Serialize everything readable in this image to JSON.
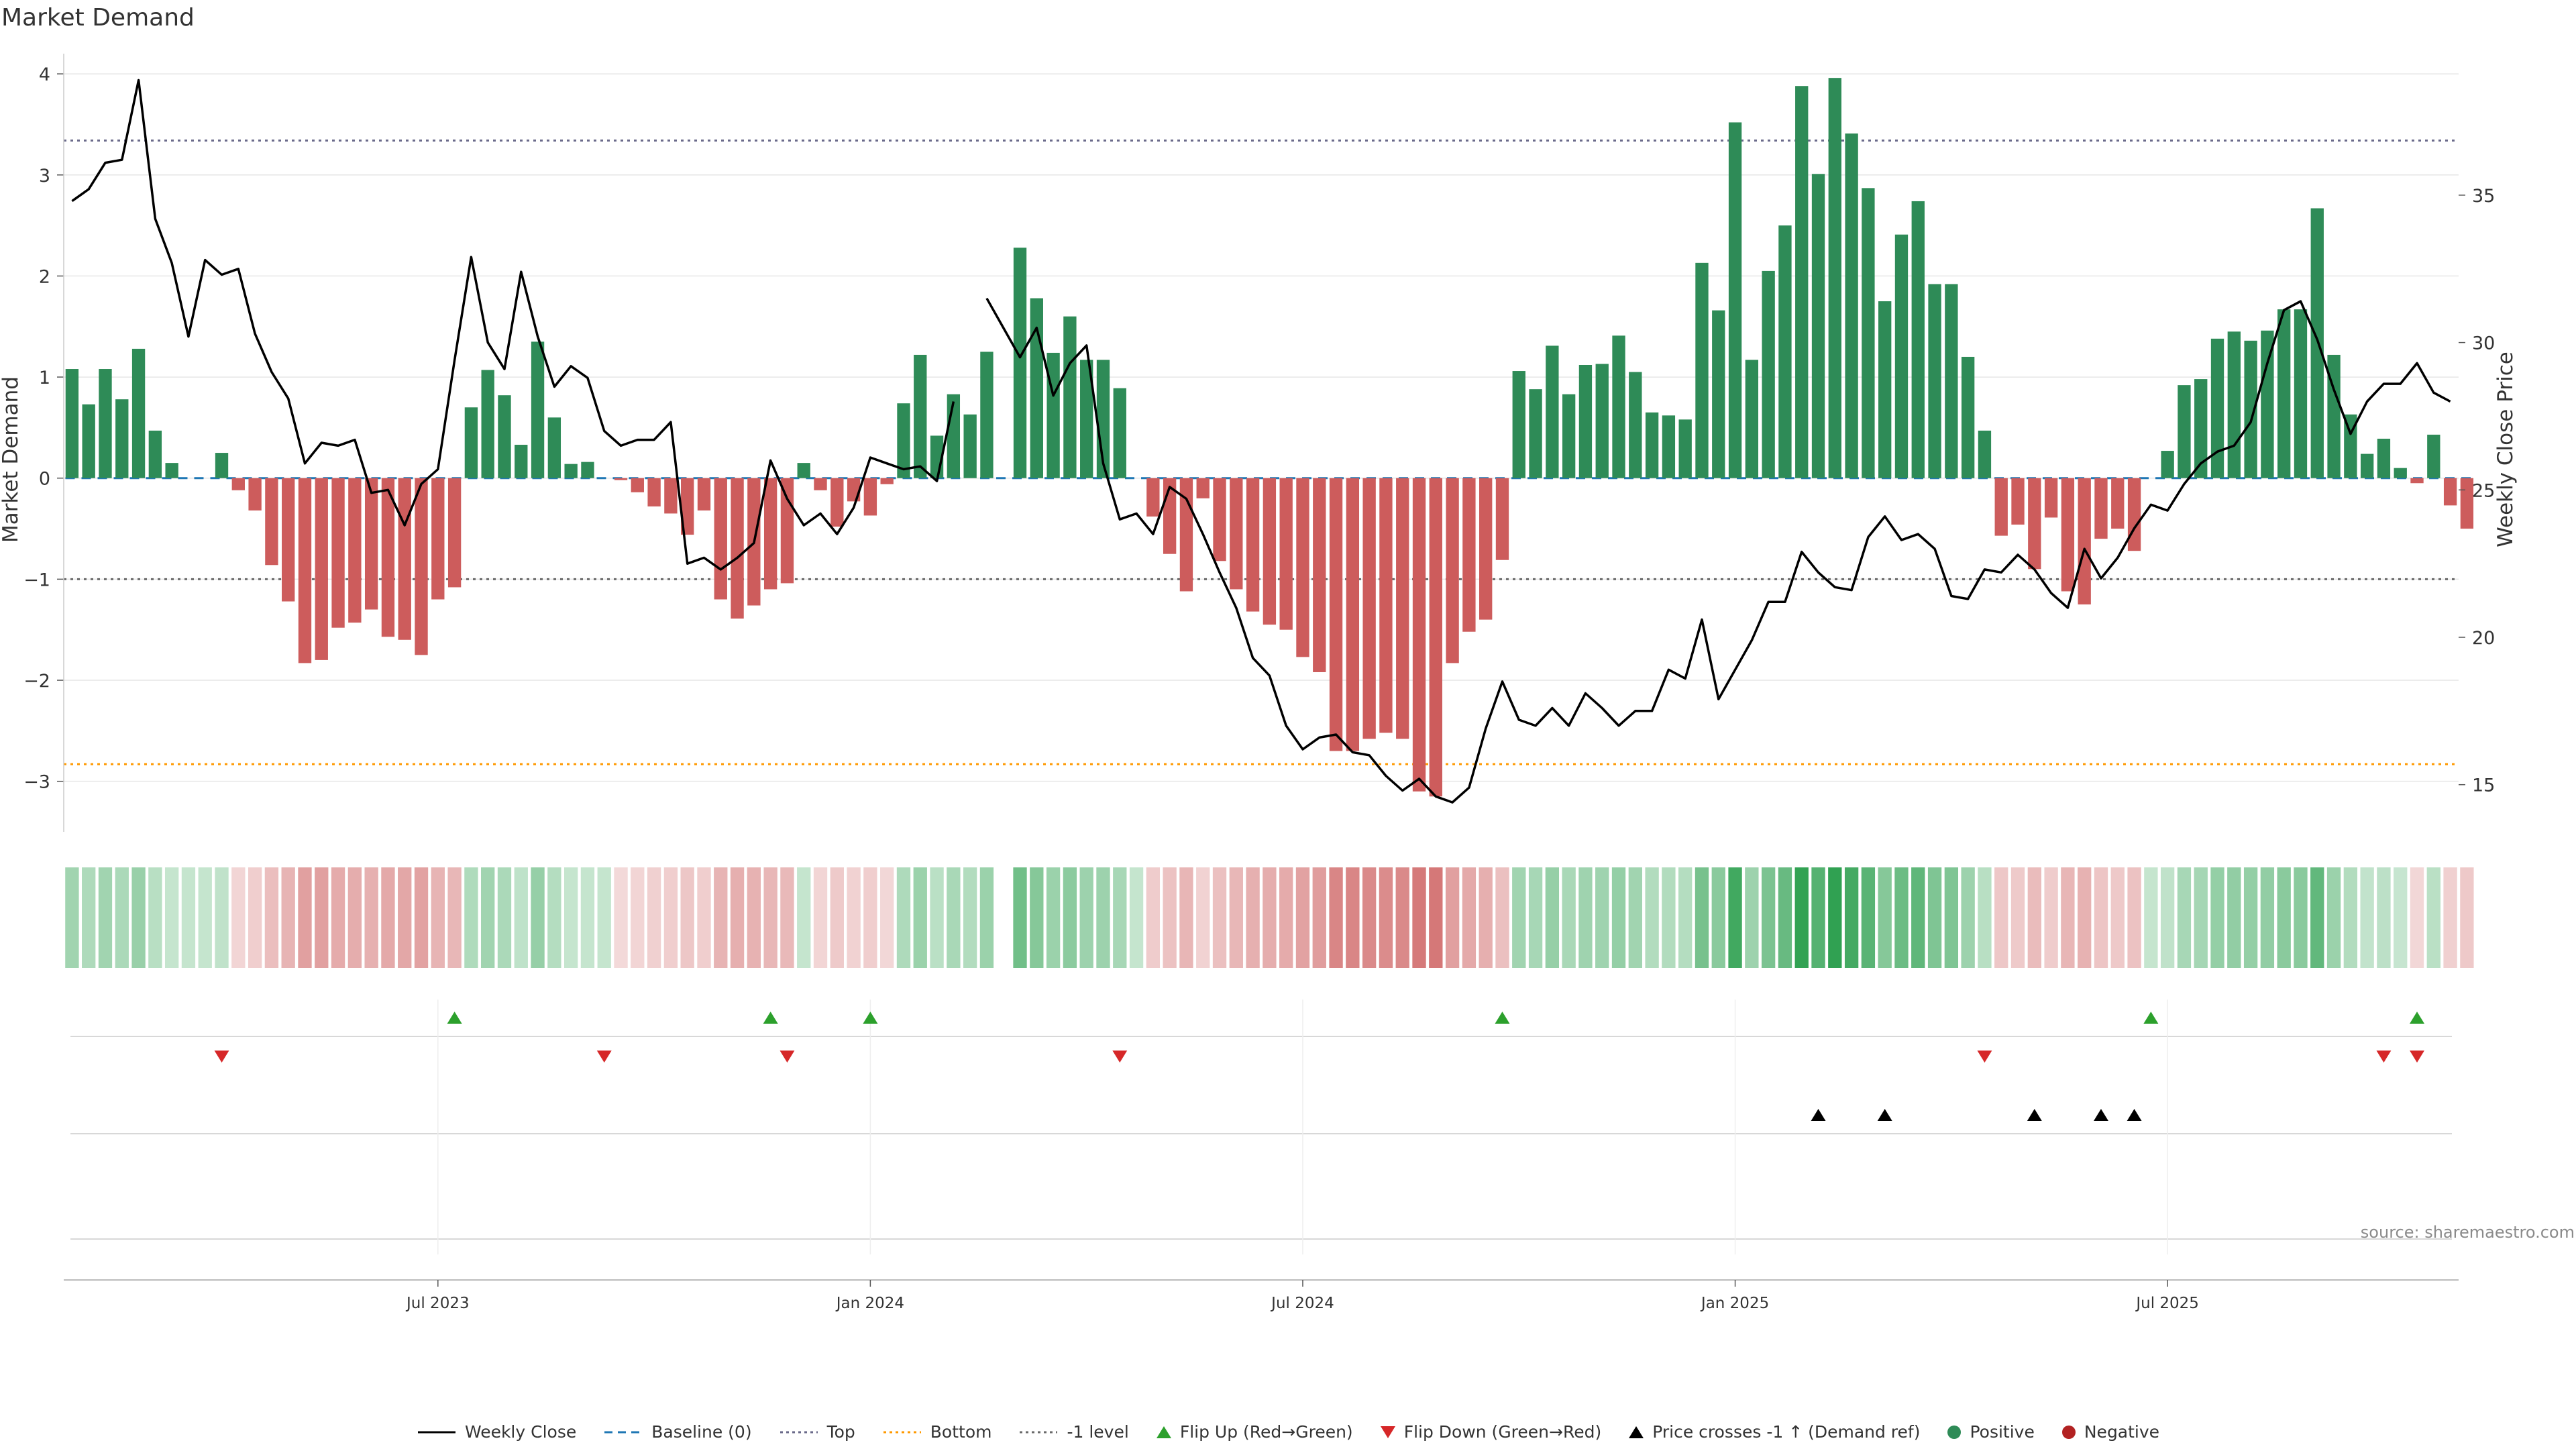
{
  "title": "Market Demand",
  "source_note": "source: sharemaestro.com",
  "colors": {
    "positive": "#2e8b57",
    "negative": "#cd5c5c",
    "price": "#000000",
    "baseline": "#1f77b4",
    "top": "#6a6a8a",
    "bottom": "#ff9900",
    "minus1": "#6a6a6a",
    "flip_up": "#2ca02c",
    "flip_down": "#d62728",
    "cross": "#000000"
  },
  "legend": [
    {
      "label": "Weekly Close",
      "kind": "line-solid",
      "color": "#000000"
    },
    {
      "label": "Baseline (0)",
      "kind": "line-dash",
      "color": "#1f77b4"
    },
    {
      "label": "Top",
      "kind": "line-dot",
      "color": "#6a6a8a"
    },
    {
      "label": "Bottom",
      "kind": "line-dot",
      "color": "#ff9900"
    },
    {
      "label": "-1 level",
      "kind": "line-dot",
      "color": "#6a6a6a"
    },
    {
      "label": "Flip Up (Red→Green)",
      "kind": "tri-up",
      "color": "#2ca02c"
    },
    {
      "label": "Flip Down (Green→Red)",
      "kind": "tri-down",
      "color": "#d62728"
    },
    {
      "label": "Price crosses -1 ↑ (Demand ref)",
      "kind": "tri-up",
      "color": "#000000"
    },
    {
      "label": "Positive",
      "kind": "dot",
      "color": "#2e8b57"
    },
    {
      "label": "Negative",
      "kind": "dot",
      "color": "#b22222"
    }
  ],
  "chart_data": {
    "type": "bar",
    "title": "Market Demand",
    "ylabel": "Market Demand",
    "y2label": "Weekly Close Price",
    "ylim": [
      -3.5,
      4.2
    ],
    "y2lim": [
      13.4,
      39.8
    ],
    "yticks": [
      -3,
      -2,
      -1,
      0,
      1,
      2,
      3,
      4
    ],
    "y2ticks": [
      15,
      20,
      25,
      30,
      35
    ],
    "ytick_labels": [
      "−3",
      "−2",
      "−1",
      "0",
      "1",
      "2",
      "3",
      "4"
    ],
    "y2tick_labels": [
      "15",
      "20",
      "25",
      "30",
      "35"
    ],
    "x_range": [
      -0.5,
      143.5
    ],
    "xtick_labels": [
      "Jul 2023",
      "Jan 2024",
      "Jul 2024",
      "Jan 2025",
      "Jul 2025"
    ],
    "xtick_positions": [
      22,
      48,
      74,
      100,
      126
    ],
    "levels": {
      "baseline": 0,
      "top": 3.34,
      "bottom": -2.83,
      "minus1": -1.0
    },
    "gap_weeks": [
      54
    ],
    "demand": [
      1.08,
      0.73,
      1.08,
      0.78,
      1.28,
      0.47,
      0.15,
      0,
      0,
      0.25,
      -0.12,
      -0.32,
      -0.86,
      -1.22,
      -1.83,
      -1.8,
      -1.48,
      -1.43,
      -1.3,
      -1.57,
      -1.6,
      -1.75,
      -1.2,
      -1.08,
      0.7,
      1.07,
      0.82,
      0.33,
      1.35,
      0.6,
      0.14,
      0.16,
      0,
      -0.02,
      -0.14,
      -0.28,
      -0.35,
      -0.56,
      -0.32,
      -1.2,
      -1.39,
      -1.26,
      -1.1,
      -1.04,
      0.15,
      -0.12,
      -0.48,
      -0.23,
      -0.37,
      -0.06,
      0.74,
      1.22,
      0.42,
      0.83,
      0.63,
      1.25,
      null,
      2.28,
      1.78,
      1.24,
      1.6,
      1.17,
      1.17,
      0.89,
      0,
      -0.38,
      -0.75,
      -1.12,
      -0.2,
      -0.82,
      -1.1,
      -1.32,
      -1.45,
      -1.5,
      -1.77,
      -1.92,
      -2.7,
      -2.7,
      -2.58,
      -2.52,
      -2.58,
      -3.1,
      -3.15,
      -1.83,
      -1.52,
      -1.4,
      -0.81,
      1.06,
      0.88,
      1.31,
      0.83,
      1.12,
      1.13,
      1.41,
      1.05,
      0.65,
      0.62,
      0.58,
      2.13,
      1.66,
      3.52,
      1.17,
      2.05,
      2.5,
      3.88,
      3.01,
      3.96,
      3.41,
      2.87,
      1.75,
      2.41,
      2.74,
      1.92,
      1.92,
      1.2,
      0.47,
      -0.57,
      -0.46,
      -0.9,
      -0.39,
      -1.12,
      -1.25,
      -0.6,
      -0.5,
      -0.72,
      0,
      0.27,
      0.92,
      0.98,
      1.38,
      1.45,
      1.36,
      1.46,
      1.67,
      1.67,
      2.67,
      1.22,
      0.63,
      0.24,
      0.39,
      0.1,
      -0.05,
      0.43,
      -0.27,
      -0.5
    ],
    "weekly_close": [
      34.8,
      35.2,
      36.1,
      36.2,
      38.9,
      34.2,
      32.7,
      30.2,
      32.8,
      32.3,
      32.5,
      30.3,
      29.0,
      28.1,
      25.9,
      26.6,
      26.5,
      26.7,
      24.9,
      25.0,
      23.8,
      25.2,
      25.7,
      29.4,
      32.9,
      30.0,
      29.1,
      32.4,
      30.2,
      28.5,
      29.2,
      28.8,
      27.0,
      26.5,
      26.7,
      26.7,
      27.3,
      22.5,
      22.7,
      22.3,
      22.7,
      23.2,
      26.0,
      24.7,
      23.8,
      24.2,
      23.5,
      24.4,
      26.1,
      25.9,
      25.7,
      25.8,
      25.3,
      28.0,
      null,
      31.5,
      30.5,
      29.5,
      30.5,
      28.2,
      29.3,
      29.9,
      25.9,
      24.0,
      24.2,
      23.5,
      25.1,
      24.7,
      23.5,
      22.2,
      21.0,
      19.3,
      18.7,
      17.0,
      16.2,
      16.6,
      16.7,
      16.1,
      16.0,
      15.3,
      14.8,
      15.2,
      14.6,
      14.4,
      14.9,
      16.9,
      18.5,
      17.2,
      17.0,
      17.6,
      17.0,
      18.1,
      17.6,
      17.0,
      17.5,
      17.5,
      18.9,
      18.6,
      20.6,
      17.9,
      18.9,
      19.9,
      21.2,
      21.2,
      22.9,
      22.2,
      21.7,
      21.6,
      23.4,
      24.1,
      23.3,
      23.5,
      23.0,
      21.4,
      21.3,
      22.3,
      22.2,
      22.8,
      22.3,
      21.5,
      21.0,
      23.0,
      22.0,
      22.7,
      23.7,
      24.5,
      24.3,
      25.2,
      25.9,
      26.3,
      26.5,
      27.3,
      29.3,
      31.1,
      31.4,
      30.1,
      28.4,
      26.9,
      28.0,
      28.6,
      28.6,
      29.3,
      28.3,
      28.0
    ],
    "flip_up": [
      23,
      42,
      48,
      86,
      125,
      141
    ],
    "flip_down": [
      9,
      32,
      43,
      63,
      115,
      139,
      141
    ],
    "price_cross_up": [
      105,
      109,
      118,
      122,
      124
    ]
  }
}
